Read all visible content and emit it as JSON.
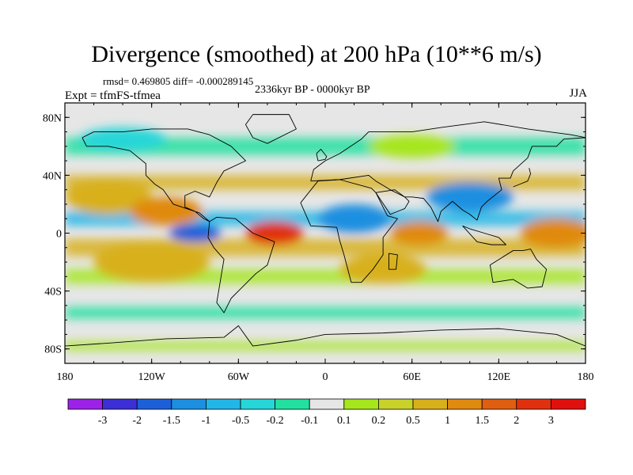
{
  "title": "Divergence (smoothed) at 200 hPa (10**6 m/s)",
  "stats_line": "rmsd= 0.469805 diff= -0.000289145",
  "experiment": "Expt = tfmFS-tfmea",
  "period": "2336kyr BP - 0000kyr BP",
  "season": "JJA",
  "map": {
    "lon_ticks": [
      "180",
      "120W",
      "60W",
      "0",
      "60E",
      "120E",
      "180"
    ],
    "lat_ticks": [
      "80N",
      "40N",
      "0",
      "40S",
      "80S"
    ],
    "lon_values": [
      -180,
      -120,
      -60,
      0,
      60,
      120,
      180
    ],
    "lat_values": [
      80,
      40,
      0,
      -40,
      -80
    ],
    "extent": {
      "lon": [
        -180,
        180
      ],
      "lat": [
        -90,
        90
      ]
    }
  },
  "colorbar": {
    "colors": [
      "#9b22e6",
      "#3c2fd6",
      "#1c5fd9",
      "#1c8fe0",
      "#22b6e8",
      "#26d6d8",
      "#22e0a0",
      "#e6e6e6",
      "#a6e61c",
      "#c8d22a",
      "#d8b01c",
      "#e08a10",
      "#e05e10",
      "#e0300e",
      "#e0100e"
    ],
    "labels": [
      "-3",
      "-2",
      "-1.5",
      "-1",
      "-0.5",
      "-0.2",
      "-0.1",
      "0.1",
      "0.2",
      "0.5",
      "1",
      "1.5",
      "2",
      "3"
    ]
  },
  "blobs": [
    {
      "lon": -150,
      "lat": 25,
      "rx": 30,
      "ry": 12,
      "level": "pos1"
    },
    {
      "lon": -110,
      "lat": 15,
      "rx": 25,
      "ry": 10,
      "level": "pos2"
    },
    {
      "lon": -90,
      "lat": 0,
      "rx": 18,
      "ry": 6,
      "level": "neg2"
    },
    {
      "lon": -35,
      "lat": 0,
      "rx": 20,
      "ry": 8,
      "level": "pos3"
    },
    {
      "lon": 20,
      "lat": 10,
      "rx": 25,
      "ry": 10,
      "level": "neg1"
    },
    {
      "lon": 65,
      "lat": 0,
      "rx": 20,
      "ry": 8,
      "level": "pos2"
    },
    {
      "lon": 100,
      "lat": 25,
      "rx": 30,
      "ry": 10,
      "level": "neg1"
    },
    {
      "lon": 160,
      "lat": 0,
      "rx": 25,
      "ry": 10,
      "level": "pos2"
    },
    {
      "lon": -120,
      "lat": -20,
      "rx": 40,
      "ry": 14,
      "level": "pos1"
    },
    {
      "lon": 40,
      "lat": -25,
      "rx": 30,
      "ry": 10,
      "level": "pos1"
    },
    {
      "lon": -140,
      "lat": 65,
      "rx": 30,
      "ry": 8,
      "level": "neg05"
    },
    {
      "lon": 60,
      "lat": 60,
      "rx": 30,
      "ry": 8,
      "level": "pos05"
    }
  ]
}
